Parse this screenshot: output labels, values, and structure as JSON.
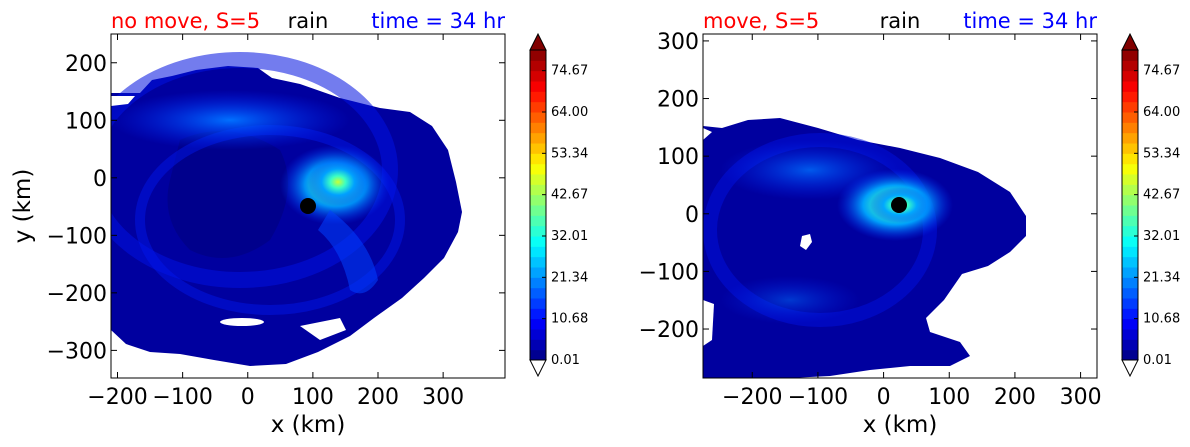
{
  "chart_data": [
    {
      "type": "contour",
      "title_left": "no move, S=5",
      "title_center": "rain",
      "title_right": "time = 34 hr",
      "title_colors": {
        "left": "#ff0000",
        "center": "#000000",
        "right": "#0000ff"
      },
      "xlabel": "x (km)",
      "ylabel": "y (km)",
      "xlim": [
        -210,
        395
      ],
      "ylim": [
        -348,
        250
      ],
      "xticks": [
        -200,
        -100,
        0,
        100,
        200,
        300
      ],
      "xtick_labels": [
        "−200",
        "−100",
        "0",
        "100",
        "200",
        "300"
      ],
      "yticks": [
        200,
        100,
        0,
        -100,
        -200,
        -300
      ],
      "ytick_labels": [
        "200",
        "100",
        "0",
        "−100",
        "−200",
        "−300"
      ],
      "center_marker": {
        "x": 97,
        "y": -48
      },
      "rain_max": {
        "x": 145,
        "y": -5,
        "value": 45
      }
    },
    {
      "type": "contour",
      "title_left": "move, S=5",
      "title_center": "rain",
      "title_right": "time = 34 hr",
      "title_colors": {
        "left": "#ff0000",
        "center": "#000000",
        "right": "#0000ff"
      },
      "xlabel": "x (km)",
      "ylabel": "",
      "xlim": [
        -275,
        325
      ],
      "ylim": [
        -285,
        312
      ],
      "xticks": [
        -200,
        -100,
        0,
        100,
        200,
        300
      ],
      "xtick_labels": [
        "−200",
        "−100",
        "0",
        "100",
        "200",
        "300"
      ],
      "yticks": [
        300,
        200,
        100,
        0,
        -100,
        -200
      ],
      "ytick_labels": [
        "300",
        "200",
        "100",
        "0",
        "−100",
        "−200"
      ],
      "center_marker": {
        "x": 22,
        "y": 12
      },
      "rain_max": {
        "x": 20,
        "y": 15,
        "value": 42
      }
    }
  ],
  "colorbar": {
    "levels_min": 0.01,
    "levels_max": 80,
    "n_levels": 30,
    "tick_values": [
      74.67,
      64.0,
      53.34,
      42.67,
      32.01,
      21.34,
      10.68,
      0.01
    ],
    "tick_labels": [
      "74.67",
      "64.00",
      "53.34",
      "42.67",
      "32.01",
      "21.34",
      "10.68",
      "0.01"
    ],
    "extend": "both",
    "colormap": "jet"
  }
}
